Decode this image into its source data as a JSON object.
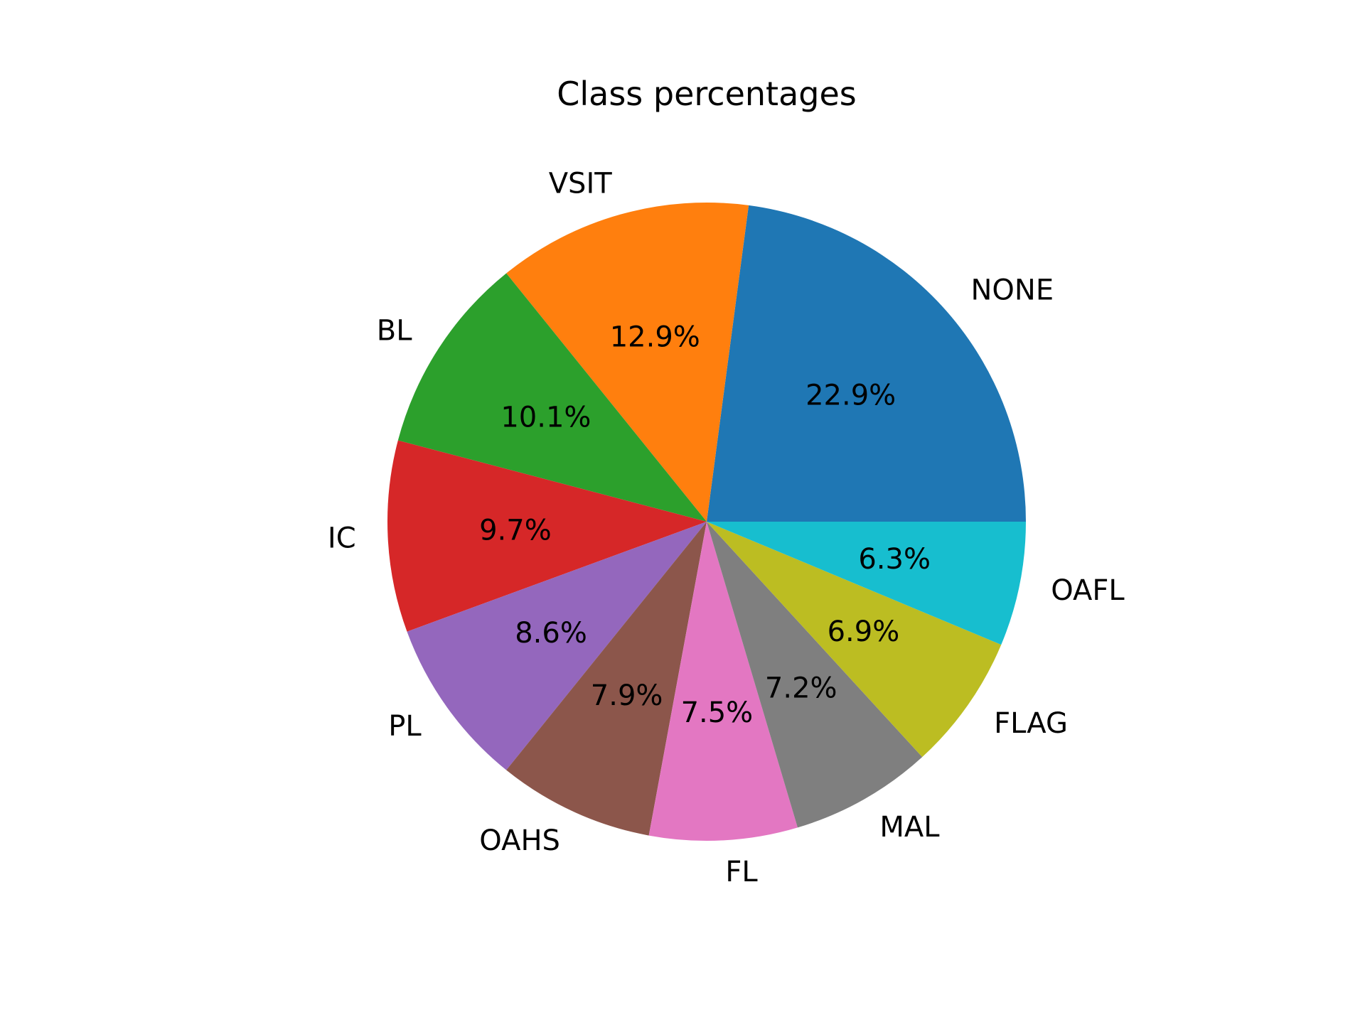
{
  "chart_data": {
    "type": "pie",
    "title": "Class percentages",
    "categories": [
      "NONE",
      "VSIT",
      "BL",
      "IC",
      "PL",
      "OAHS",
      "FL",
      "MAL",
      "FLAG",
      "OAFL"
    ],
    "values": [
      22.9,
      12.9,
      10.1,
      9.7,
      8.6,
      7.9,
      7.5,
      7.2,
      6.9,
      6.3
    ],
    "value_labels": [
      "22.9%",
      "12.9%",
      "10.1%",
      "9.7%",
      "8.6%",
      "7.9%",
      "7.5%",
      "7.2%",
      "6.9%",
      "6.3%"
    ],
    "colors": [
      "#1f77b4",
      "#ff7f0e",
      "#2ca02c",
      "#d62728",
      "#9467bd",
      "#8c564b",
      "#e377c2",
      "#7f7f7f",
      "#bcbd22",
      "#17becf"
    ],
    "start_angle_deg": 0,
    "direction": "counterclockwise",
    "legend": "none"
  }
}
